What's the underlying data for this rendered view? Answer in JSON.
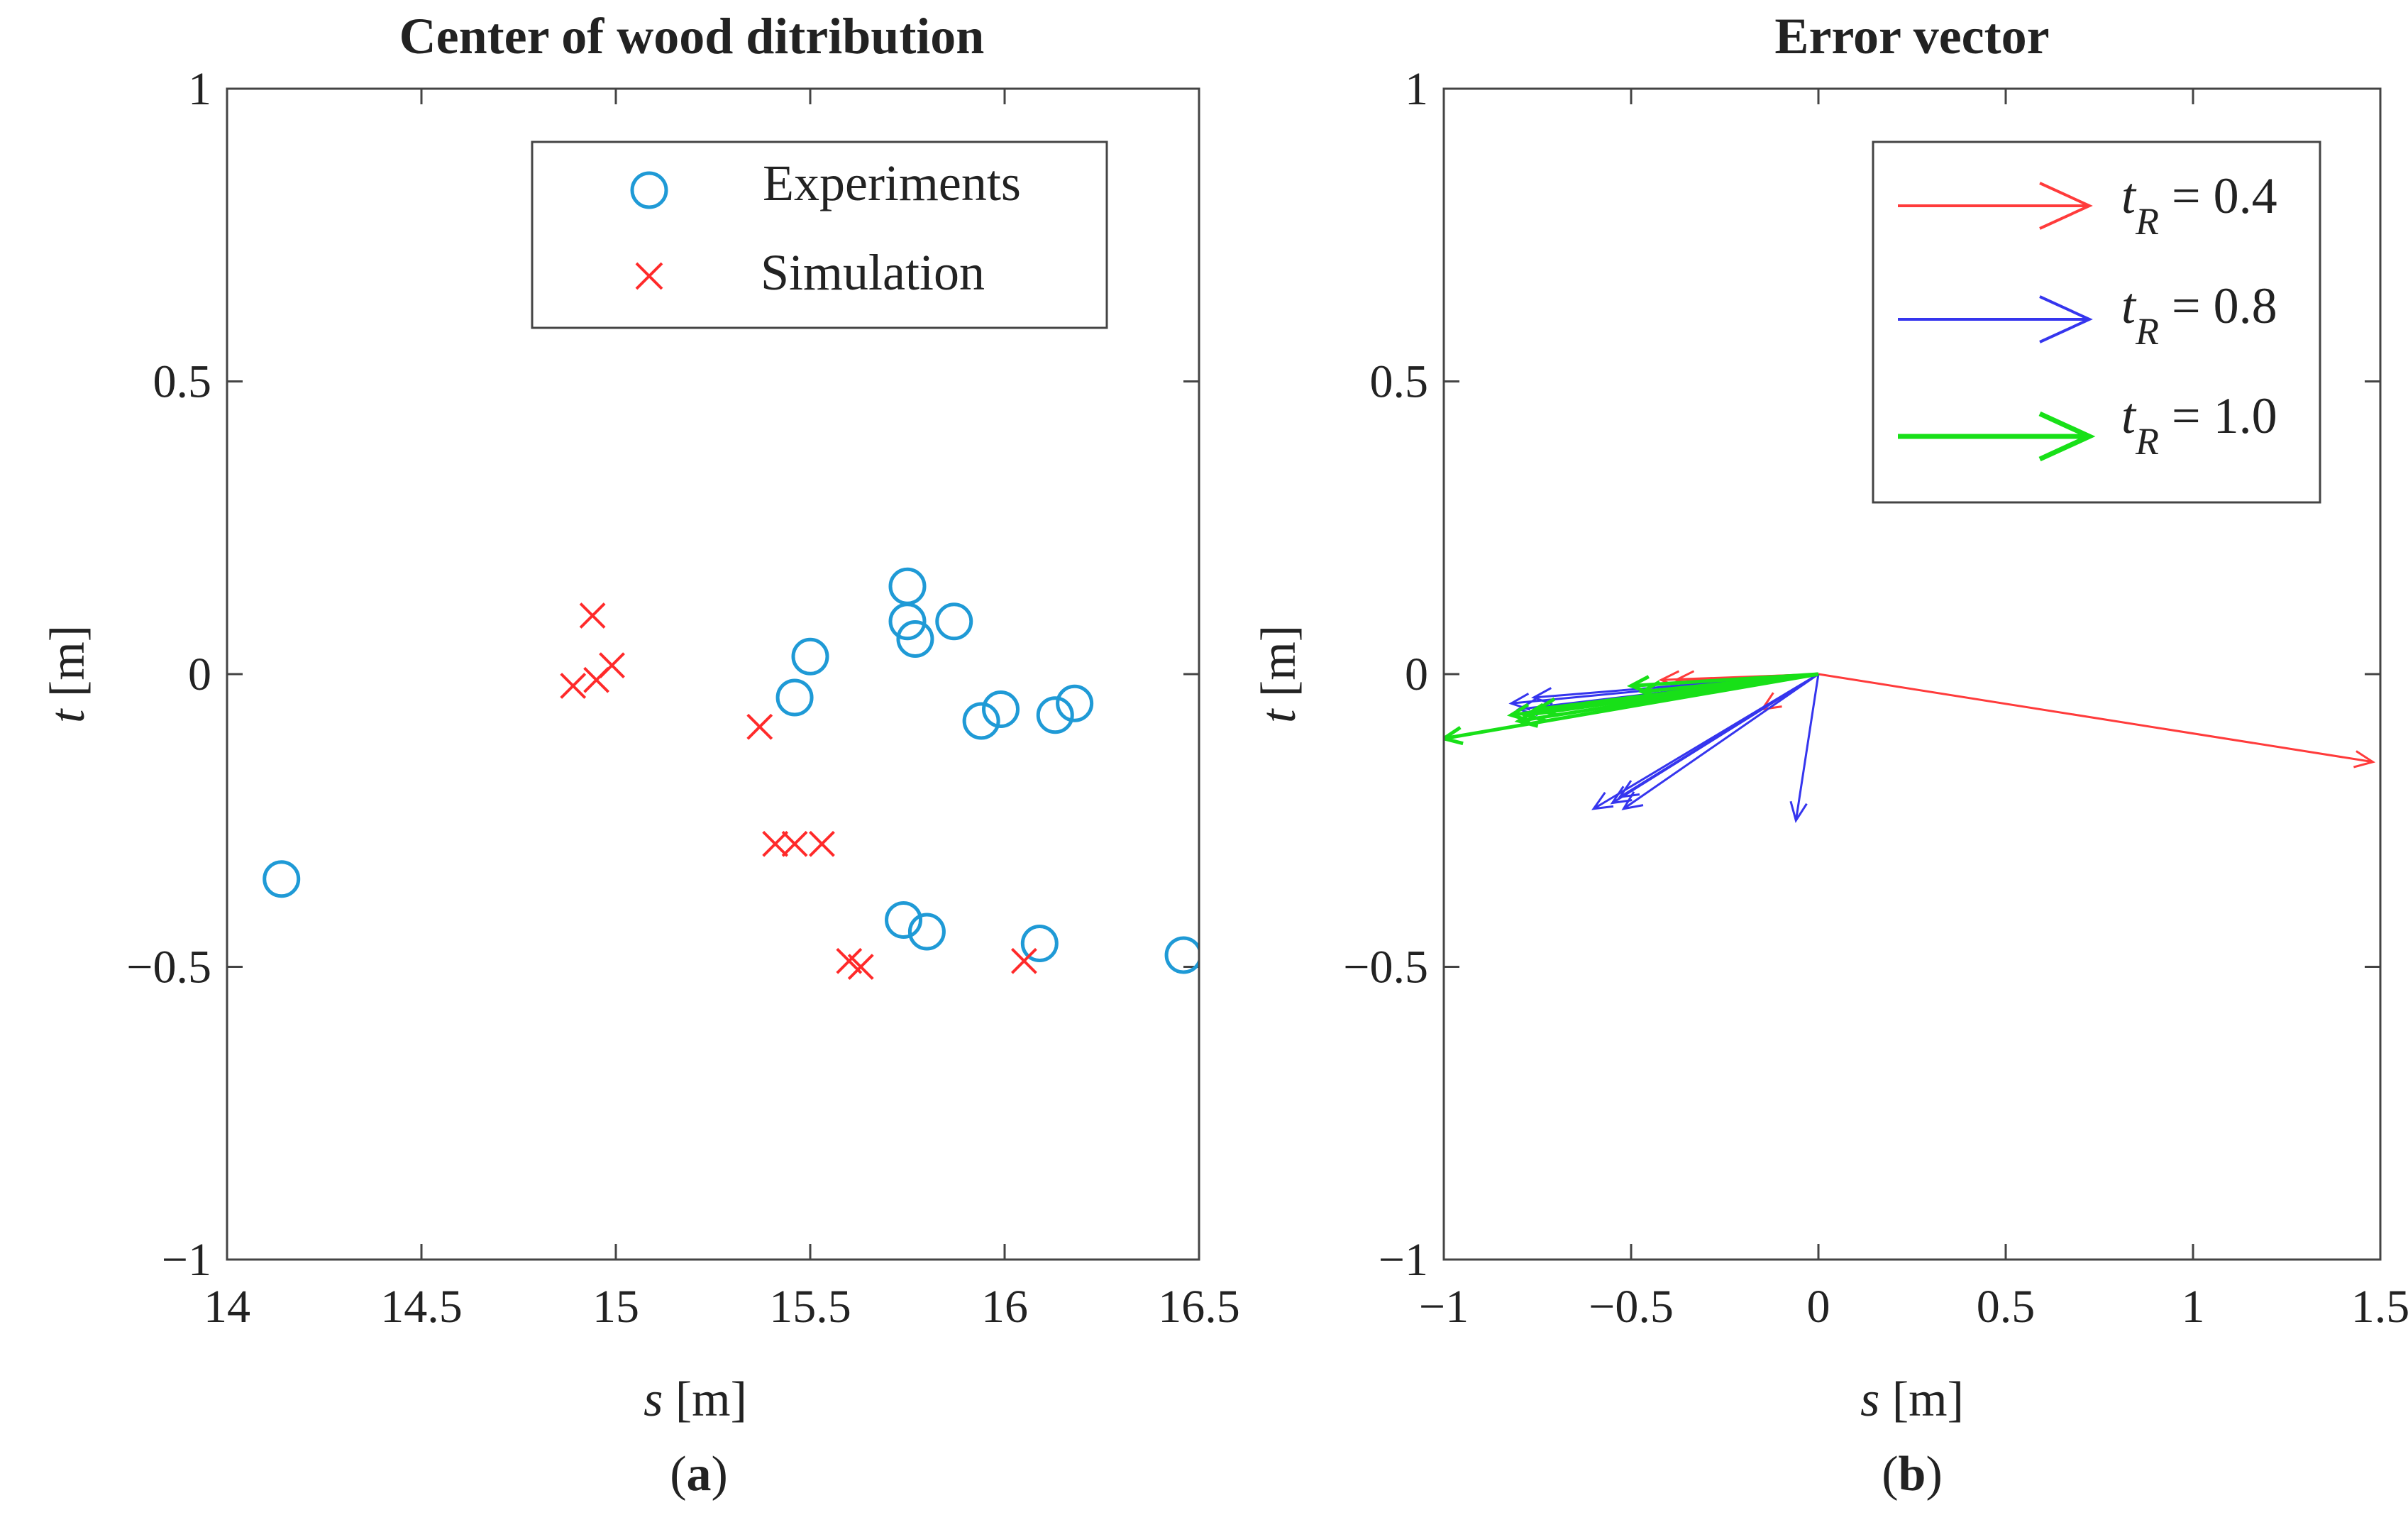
{
  "figure": {
    "caption_a_letter": "a",
    "caption_b_letter": "b"
  },
  "chart_data": [
    {
      "type": "scatter",
      "title": "Center of wood ditribution",
      "xlabel_var": "s",
      "xlabel_unit": " [m]",
      "ylabel_var": "t",
      "ylabel_unit": " [m]",
      "xlim": [
        14,
        16.5
      ],
      "ylim": [
        -1,
        1
      ],
      "xticks": [
        14,
        14.5,
        15,
        15.5,
        16,
        16.5
      ],
      "xtick_labels": [
        "14",
        "14.5",
        "15",
        "15.5",
        "16",
        "16.5"
      ],
      "yticks": [
        1,
        0.5,
        0,
        -0.5,
        -1
      ],
      "ytick_labels": [
        "1",
        "0.5",
        "0",
        "−0.5",
        "−1"
      ],
      "legend_position": "top-right",
      "series": [
        {
          "name": "Experiments",
          "marker": "circle",
          "color": "#1f9ad6",
          "points": [
            [
              14.14,
              -0.35
            ],
            [
              15.46,
              -0.04
            ],
            [
              15.5,
              0.03
            ],
            [
              15.75,
              0.15
            ],
            [
              15.75,
              0.09
            ],
            [
              15.77,
              0.06
            ],
            [
              15.87,
              0.09
            ],
            [
              15.94,
              -0.08
            ],
            [
              15.99,
              -0.06
            ],
            [
              16.13,
              -0.07
            ],
            [
              16.18,
              -0.05
            ],
            [
              15.74,
              -0.42
            ],
            [
              15.8,
              -0.44
            ],
            [
              16.09,
              -0.46
            ],
            [
              16.46,
              -0.48
            ]
          ]
        },
        {
          "name": "Simulation",
          "marker": "x",
          "color": "#ff2a2a",
          "points": [
            [
              14.94,
              0.1
            ],
            [
              14.99,
              0.015
            ],
            [
              14.89,
              -0.02
            ],
            [
              14.95,
              -0.01
            ],
            [
              15.37,
              -0.09
            ],
            [
              15.41,
              -0.29
            ],
            [
              15.46,
              -0.29
            ],
            [
              15.53,
              -0.29
            ],
            [
              15.6,
              -0.49
            ],
            [
              15.63,
              -0.5
            ],
            [
              16.05,
              -0.49
            ]
          ]
        }
      ]
    },
    {
      "type": "quiver",
      "title": "Error vector",
      "xlabel_var": "s",
      "xlabel_unit": " [m]",
      "ylabel_var": "t",
      "ylabel_unit": " [m]",
      "xlim": [
        -1,
        1.5
      ],
      "ylim": [
        -1,
        1
      ],
      "xticks": [
        -1,
        -0.5,
        0,
        0.5,
        1,
        1.5
      ],
      "xtick_labels": [
        "−1",
        "−0.5",
        "0",
        "0.5",
        "1",
        "1.5"
      ],
      "yticks": [
        1,
        0.5,
        0,
        -0.5,
        -1
      ],
      "ytick_labels": [
        "1",
        "0.5",
        "0",
        "−0.5",
        "−1"
      ],
      "legend_position": "top-right",
      "origin": [
        0,
        0
      ],
      "series": [
        {
          "name_var": "t",
          "name_sub": "R",
          "name_value": " = 0.4",
          "color": "#ff3b3b",
          "vectors": [
            [
              1.48,
              -0.15
            ],
            [
              -0.42,
              -0.01
            ],
            [
              -0.38,
              -0.01
            ],
            [
              -0.15,
              -0.06
            ]
          ]
        },
        {
          "name_var": "t",
          "name_sub": "R",
          "name_value": " = 0.8",
          "color": "#3535ee",
          "vectors": [
            [
              -0.82,
              -0.05
            ],
            [
              -0.8,
              -0.06
            ],
            [
              -0.76,
              -0.04
            ],
            [
              -0.6,
              -0.23
            ],
            [
              -0.55,
              -0.22
            ],
            [
              -0.53,
              -0.21
            ],
            [
              -0.52,
              -0.23
            ],
            [
              -0.06,
              -0.25
            ]
          ]
        },
        {
          "name_var": "t",
          "name_sub": "R",
          "name_value": " = 1.0",
          "color": "#18e018",
          "vectors": [
            [
              -1.0,
              -0.11
            ],
            [
              -0.82,
              -0.07
            ],
            [
              -0.8,
              -0.08
            ],
            [
              -0.78,
              -0.07
            ],
            [
              -0.75,
              -0.06
            ],
            [
              -0.5,
              -0.02
            ],
            [
              -0.47,
              -0.03
            ]
          ]
        }
      ]
    }
  ]
}
